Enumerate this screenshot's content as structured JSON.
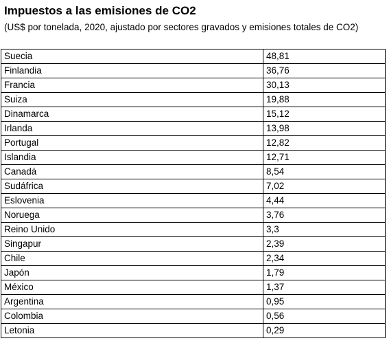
{
  "header": {
    "title": "Impuestos a las emisiones de CO2",
    "subtitle": "(US$ por tonelada, 2020, ajustado por sectores gravados y emisiones totales de CO2)"
  },
  "table": {
    "rows": [
      [
        "Suecia",
        "48,81"
      ],
      [
        "Finlandia",
        "36,76"
      ],
      [
        "Francia",
        "30,13"
      ],
      [
        "Suiza",
        "19,88"
      ],
      [
        "Dinamarca",
        "15,12"
      ],
      [
        "Irlanda",
        "13,98"
      ],
      [
        "Portugal",
        "12,82"
      ],
      [
        "Islandia",
        "12,71"
      ],
      [
        "Canadá",
        "8,54"
      ],
      [
        "Sudáfrica",
        "7,02"
      ],
      [
        "Eslovenia",
        "4,44"
      ],
      [
        "Noruega",
        "3,76"
      ],
      [
        "Reino Unido",
        "3,3"
      ],
      [
        "Singapur",
        "2,39"
      ],
      [
        "Chile",
        "2,34"
      ],
      [
        "Japón",
        "1,79"
      ],
      [
        "México",
        "1,37"
      ],
      [
        "Argentina",
        "0,95"
      ],
      [
        "Colombia",
        "0,56"
      ],
      [
        "Letonia",
        "0,29"
      ]
    ]
  }
}
